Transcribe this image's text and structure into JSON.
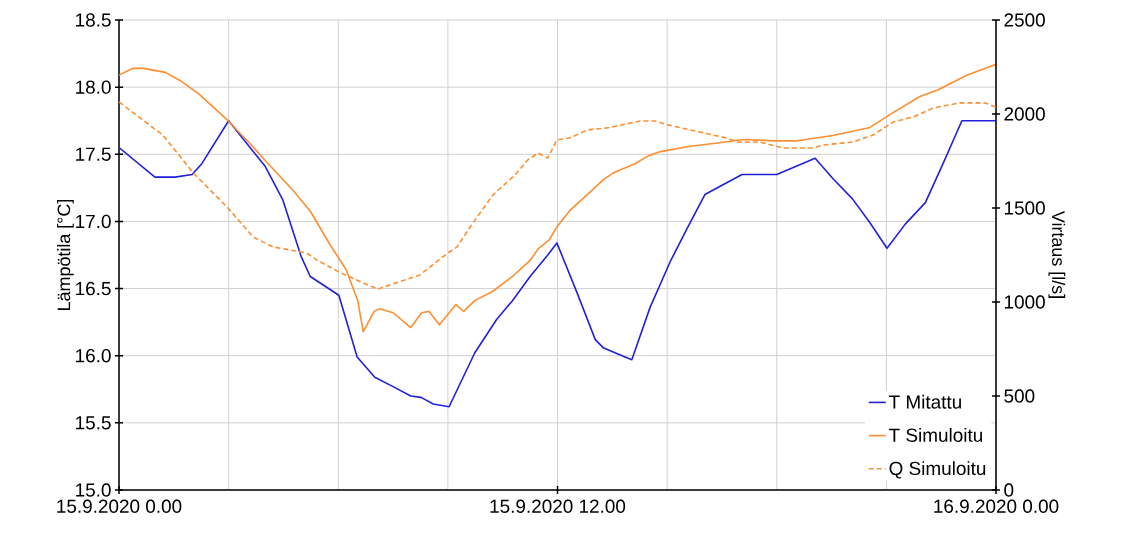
{
  "chart_data": {
    "type": "line",
    "ylabel": "Lämpötila [°C]",
    "y2label": "Virtaus [l/s]",
    "xlim": [
      "2020-09-15T00:00",
      "2020-09-16T00:00"
    ],
    "xticks": [
      {
        "value": "2020-09-15T00:00",
        "label": "15.9.2020 0.00"
      },
      {
        "value": "2020-09-15T03:00",
        "label": null
      },
      {
        "value": "2020-09-15T06:00",
        "label": null
      },
      {
        "value": "2020-09-15T09:00",
        "label": null
      },
      {
        "value": "2020-09-15T12:00",
        "label": "15.9.2020 12.00"
      },
      {
        "value": "2020-09-15T15:00",
        "label": null
      },
      {
        "value": "2020-09-15T18:00",
        "label": null
      },
      {
        "value": "2020-09-15T21:00",
        "label": null
      },
      {
        "value": "2020-09-16T00:00",
        "label": "16.9.2020 0.00"
      }
    ],
    "ylim": [
      15,
      18.5
    ],
    "yticks": [
      {
        "value": 15,
        "label": "15.0"
      },
      {
        "value": 15.5,
        "label": "15.5"
      },
      {
        "value": 16,
        "label": "16.0"
      },
      {
        "value": 16.5,
        "label": "16.5"
      },
      {
        "value": 17,
        "label": "17.0"
      },
      {
        "value": 17.5,
        "label": "17.5"
      },
      {
        "value": 18,
        "label": "18.0"
      },
      {
        "value": 18.5,
        "label": "18.5"
      }
    ],
    "y2lim": [
      0,
      2500
    ],
    "y2ticks": [
      0,
      500,
      1000,
      1500,
      2000,
      2500
    ],
    "grid": true,
    "legend": "bottom right",
    "series": [
      {
        "name": "T Mitattu",
        "color": "#2121dc",
        "line_style": "solid",
        "x": [
          "2020-09-15T00:00",
          "2020-09-15T00:59",
          "2020-09-15T01:32",
          "2020-09-15T02:00",
          "2020-09-15T02:16",
          "2020-09-15T03:00",
          "2020-09-15T04:00",
          "2020-09-15T04:29",
          "2020-09-15T04:59",
          "2020-09-15T05:14",
          "2020-09-15T06:01",
          "2020-09-15T06:31",
          "2020-09-15T07:00",
          "2020-09-15T07:30",
          "2020-09-15T07:59",
          "2020-09-15T08:16",
          "2020-09-15T08:36",
          "2020-09-15T09:02",
          "2020-09-15T09:44",
          "2020-09-15T10:20",
          "2020-09-15T10:46",
          "2020-09-15T11:15",
          "2020-09-15T11:44",
          "2020-09-15T11:59",
          "2020-09-15T12:32",
          "2020-09-15T13:02",
          "2020-09-15T13:15",
          "2020-09-15T13:46",
          "2020-09-15T14:02",
          "2020-09-15T14:32",
          "2020-09-15T15:05",
          "2020-09-15T15:32",
          "2020-09-15T16:02",
          "2020-09-15T17:03",
          "2020-09-15T18:00",
          "2020-09-15T19:03",
          "2020-09-15T19:32",
          "2020-09-15T20:04",
          "2020-09-15T20:33",
          "2020-09-15T21:01",
          "2020-09-15T21:31",
          "2020-09-15T22:04",
          "2020-09-15T22:33",
          "2020-09-15T23:04",
          "2020-09-16T00:00"
        ],
        "values": [
          17.55,
          17.33,
          17.33,
          17.35,
          17.43,
          17.75,
          17.41,
          17.16,
          16.74,
          16.59,
          16.45,
          15.99,
          15.84,
          15.77,
          15.7,
          15.69,
          15.64,
          15.62,
          16.02,
          16.27,
          16.41,
          16.59,
          16.75,
          16.84,
          16.47,
          16.12,
          16.06,
          16.0,
          15.97,
          16.36,
          16.7,
          16.94,
          17.2,
          17.35,
          17.35,
          17.47,
          17.32,
          17.17,
          16.99,
          16.8,
          16.98,
          17.14,
          17.43,
          17.75,
          17.75
        ]
      },
      {
        "name": "T Simuloitu",
        "color": "#fd8f30",
        "line_style": "solid",
        "x": [
          "2020-09-15T00:00",
          "2020-09-15T00:23",
          "2020-09-15T00:40",
          "2020-09-15T01:16",
          "2020-09-15T01:40",
          "2020-09-15T02:11",
          "2020-09-15T02:59",
          "2020-09-15T03:35",
          "2020-09-15T04:05",
          "2020-09-15T04:46",
          "2020-09-15T05:15",
          "2020-09-15T05:46",
          "2020-09-15T06:13",
          "2020-09-15T06:32",
          "2020-09-15T06:41",
          "2020-09-15T06:59",
          "2020-09-15T07:08",
          "2020-09-15T07:30",
          "2020-09-15T07:59",
          "2020-09-15T08:17",
          "2020-09-15T08:29",
          "2020-09-15T08:46",
          "2020-09-15T09:13",
          "2020-09-15T09:26",
          "2020-09-15T09:44",
          "2020-09-15T10:14",
          "2020-09-15T10:46",
          "2020-09-15T11:15",
          "2020-09-15T11:29",
          "2020-09-15T11:46",
          "2020-09-15T11:59",
          "2020-09-15T12:20",
          "2020-09-15T12:49",
          "2020-09-15T13:15",
          "2020-09-15T13:31",
          "2020-09-15T14:07",
          "2020-09-15T14:30",
          "2020-09-15T14:49",
          "2020-09-15T15:38",
          "2020-09-15T16:16",
          "2020-09-15T17:06",
          "2020-09-15T17:57",
          "2020-09-15T18:32",
          "2020-09-15T18:48",
          "2020-09-15T19:32",
          "2020-09-15T20:33",
          "2020-09-15T21:11",
          "2020-09-15T21:55",
          "2020-09-15T22:25",
          "2020-09-15T23:13",
          "2020-09-16T00:00"
        ],
        "values": [
          18.09,
          18.14,
          18.14,
          18.11,
          18.05,
          17.95,
          17.75,
          17.58,
          17.43,
          17.23,
          17.07,
          16.83,
          16.64,
          16.41,
          16.18,
          16.33,
          16.35,
          16.32,
          16.21,
          16.32,
          16.33,
          16.23,
          16.38,
          16.33,
          16.41,
          16.48,
          16.59,
          16.71,
          16.8,
          16.86,
          16.96,
          17.08,
          17.2,
          17.31,
          17.36,
          17.43,
          17.49,
          17.52,
          17.56,
          17.58,
          17.61,
          17.6,
          17.6,
          17.61,
          17.64,
          17.7,
          17.81,
          17.93,
          17.98,
          18.09,
          18.17
        ]
      },
      {
        "name": "Q Simuloitu",
        "color": "#fd8f30",
        "line_style": "dashed",
        "axis": "y2",
        "x": [
          "2020-09-15T00:00",
          "2020-09-15T01:12",
          "2020-09-15T02:02",
          "2020-09-15T02:59",
          "2020-09-15T03:40",
          "2020-09-15T04:13",
          "2020-09-15T05:08",
          "2020-09-15T05:25",
          "2020-09-15T06:01",
          "2020-09-15T06:41",
          "2020-09-15T07:05",
          "2020-09-15T08:14",
          "2020-09-15T09:00",
          "2020-09-15T09:15",
          "2020-09-15T09:41",
          "2020-09-15T10:14",
          "2020-09-15T10:50",
          "2020-09-15T11:11",
          "2020-09-15T11:28",
          "2020-09-15T11:44",
          "2020-09-15T11:59",
          "2020-09-15T12:20",
          "2020-09-15T12:49",
          "2020-09-15T13:22",
          "2020-09-15T14:16",
          "2020-09-15T14:40",
          "2020-09-15T15:01",
          "2020-09-15T16:38",
          "2020-09-15T16:56",
          "2020-09-15T17:32",
          "2020-09-15T18:10",
          "2020-09-15T18:59",
          "2020-09-15T19:16",
          "2020-09-15T20:05",
          "2020-09-15T20:38",
          "2020-09-15T21:11",
          "2020-09-15T21:44",
          "2020-09-15T22:17",
          "2020-09-15T23:01",
          "2020-09-15T23:42",
          "2020-09-16T00:00"
        ],
        "values": [
          2064,
          1888,
          1686,
          1500,
          1346,
          1293,
          1261,
          1223,
          1160,
          1101,
          1069,
          1144,
          1261,
          1293,
          1420,
          1569,
          1675,
          1755,
          1792,
          1766,
          1862,
          1872,
          1915,
          1926,
          1963,
          1963,
          1942,
          1872,
          1851,
          1851,
          1819,
          1819,
          1835,
          1851,
          1888,
          1957,
          1984,
          2032,
          2059,
          2059,
          2037
        ]
      }
    ]
  }
}
